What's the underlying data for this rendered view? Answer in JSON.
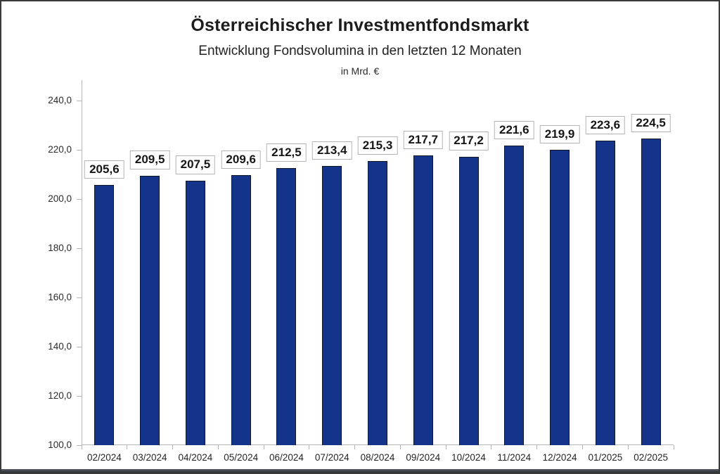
{
  "chart": {
    "title": "Österreichischer Investmentfondsmarkt",
    "subtitle": "Entwicklung Fondsvolumina in den letzten 12 Monaten",
    "unit": "in Mrd. €"
  },
  "chart_data": {
    "type": "bar",
    "title": "Österreichischer Investmentfondsmarkt",
    "subtitle": "Entwicklung Fondsvolumina in den letzten 12 Monaten",
    "unit_label": "in Mrd. €",
    "categories": [
      "02/2024",
      "03/2024",
      "04/2024",
      "05/2024",
      "06/2024",
      "07/2024",
      "08/2024",
      "09/2024",
      "10/2024",
      "11/2024",
      "12/2024",
      "01/2025",
      "02/2025"
    ],
    "values": [
      205.6,
      209.5,
      207.5,
      209.6,
      212.5,
      213.4,
      215.3,
      217.7,
      217.2,
      221.6,
      219.9,
      223.6,
      224.5
    ],
    "value_labels": [
      "205,6",
      "209,5",
      "207,5",
      "209,6",
      "212,5",
      "213,4",
      "215,3",
      "217,7",
      "217,2",
      "221,6",
      "219,9",
      "223,6",
      "224,5"
    ],
    "ylabel": "",
    "xlabel": "",
    "ylim": [
      100,
      240
    ],
    "ytick_step": 20,
    "ytick_labels": [
      "100,0",
      "120,0",
      "140,0",
      "160,0",
      "180,0",
      "200,0",
      "220,0",
      "240,0"
    ],
    "grid": false,
    "legend": "none",
    "bar_color": "#14338a",
    "bar_border_color": "#0e1524",
    "axis_color": "#b5b5b5"
  }
}
